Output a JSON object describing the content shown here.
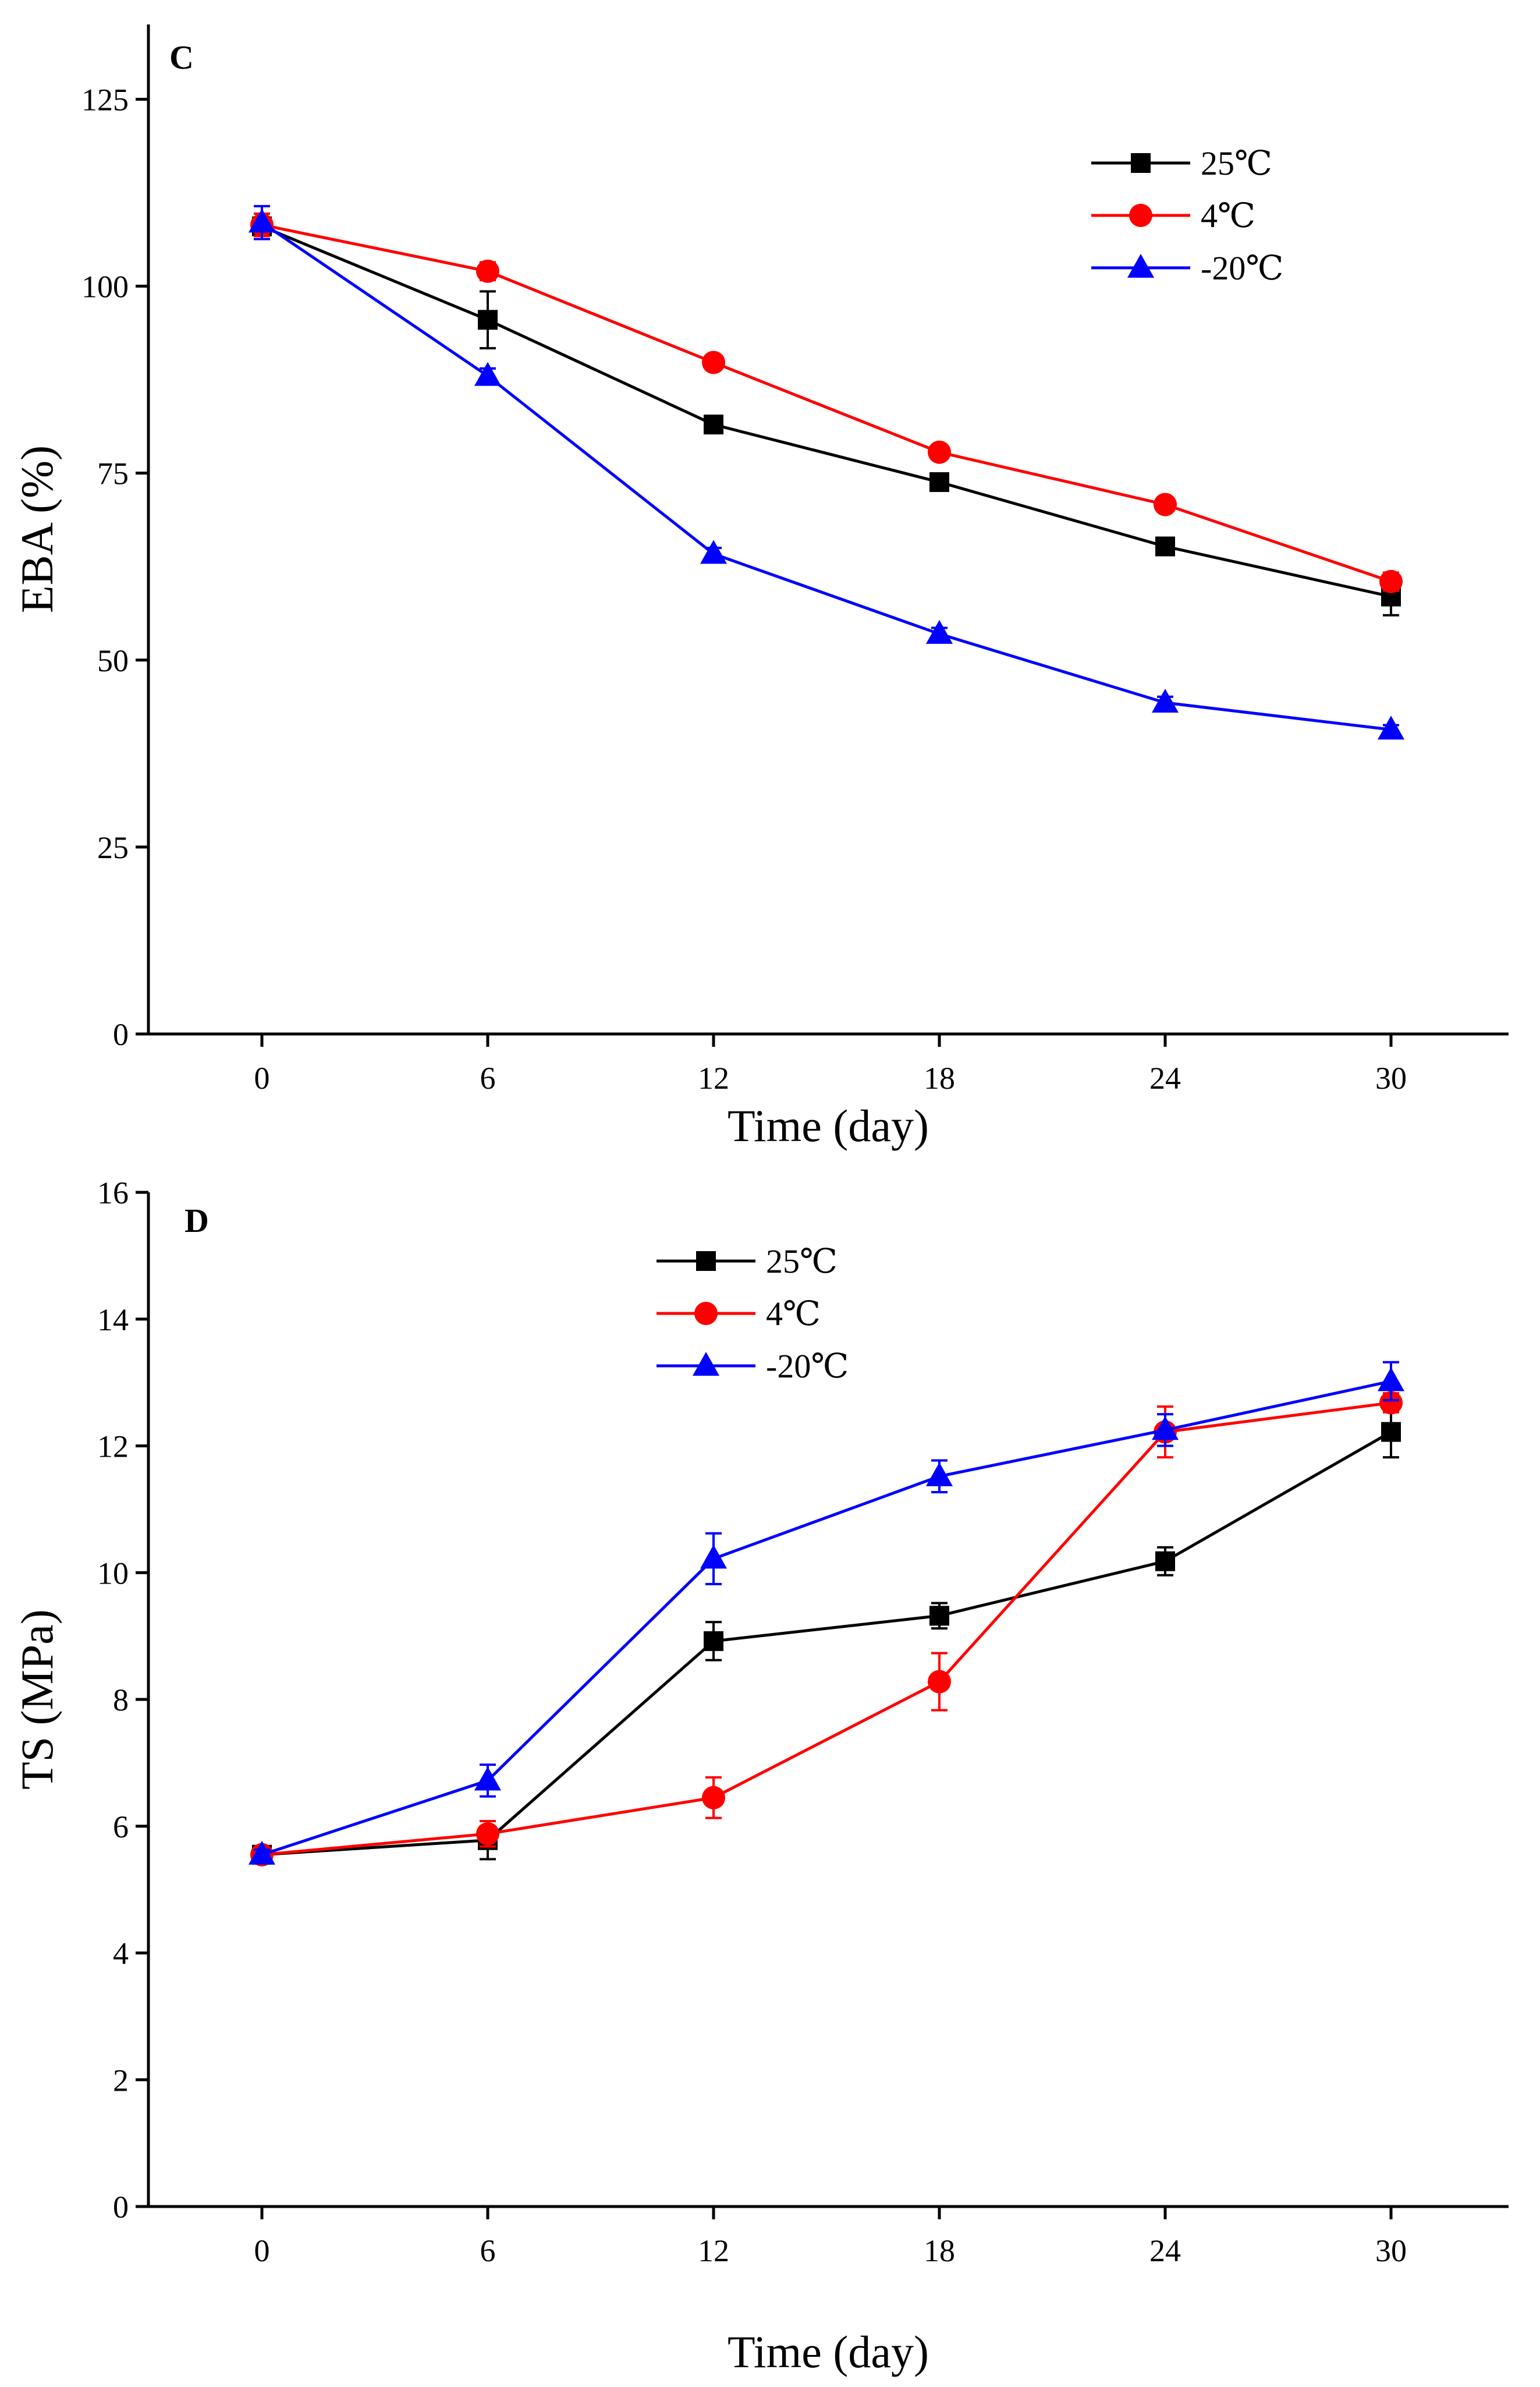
{
  "chart_data": [
    {
      "panel": "C",
      "type": "line",
      "xlabel": "Time (day)",
      "ylabel": "EBA (%)",
      "x": [
        0,
        6,
        12,
        18,
        24,
        30
      ],
      "xticks": [
        "0",
        "6",
        "12",
        "18",
        "24",
        "30"
      ],
      "ylim": [
        0,
        135
      ],
      "yticks": [
        "0",
        "25",
        "50",
        "75",
        "100",
        "125"
      ],
      "legend_position": "top-right",
      "series": [
        {
          "name": "25℃",
          "color": "#000000",
          "marker": "square",
          "values": [
            108.0,
            95.5,
            81.5,
            73.8,
            65.2,
            58.5
          ],
          "errors": [
            1.2,
            3.8,
            0.9,
            0.8,
            0.9,
            2.5
          ]
        },
        {
          "name": "4℃",
          "color": "#ff0000",
          "marker": "circle",
          "values": [
            108.2,
            102.0,
            89.8,
            77.8,
            70.8,
            60.5
          ],
          "errors": [
            1.5,
            1.2,
            0.8,
            0.8,
            0.8,
            1.2
          ]
        },
        {
          "name": "-20℃",
          "color": "#0000ff",
          "marker": "triangle",
          "values": [
            108.5,
            88.0,
            64.2,
            53.5,
            44.3,
            40.7
          ],
          "errors": [
            2.2,
            1.0,
            0.8,
            0.8,
            0.8,
            0.6
          ]
        }
      ]
    },
    {
      "panel": "D",
      "type": "line",
      "xlabel": "Time (day)",
      "ylabel": "TS (MPa)",
      "x": [
        0,
        6,
        12,
        18,
        24,
        30
      ],
      "xticks": [
        "0",
        "6",
        "12",
        "18",
        "24",
        "30"
      ],
      "ylim": [
        0,
        16
      ],
      "yticks": [
        "0",
        "2",
        "4",
        "6",
        "8",
        "10",
        "12",
        "14",
        "16"
      ],
      "legend_position": "top-left",
      "series": [
        {
          "name": "25℃",
          "color": "#000000",
          "marker": "square",
          "values": [
            5.55,
            5.78,
            8.92,
            9.32,
            10.18,
            12.22
          ],
          "errors": [
            0.08,
            0.3,
            0.3,
            0.2,
            0.22,
            0.4
          ]
        },
        {
          "name": "4℃",
          "color": "#ff0000",
          "marker": "circle",
          "values": [
            5.55,
            5.88,
            6.45,
            8.28,
            12.22,
            12.68
          ],
          "errors": [
            0.08,
            0.2,
            0.32,
            0.45,
            0.4,
            0.15
          ]
        },
        {
          "name": "-20℃",
          "color": "#0000ff",
          "marker": "triangle",
          "values": [
            5.55,
            6.72,
            10.22,
            11.52,
            12.25,
            13.02
          ],
          "errors": [
            0.08,
            0.25,
            0.4,
            0.25,
            0.25,
            0.3
          ]
        }
      ]
    }
  ]
}
